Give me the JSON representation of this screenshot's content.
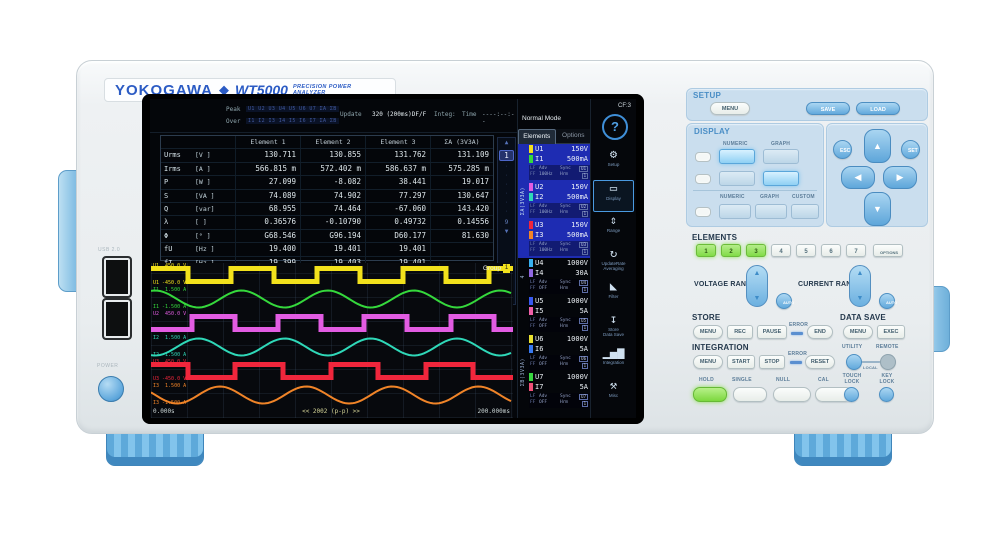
{
  "brand": {
    "maker": "YOKOGAWA",
    "diamond": "◆",
    "model": "WT5000",
    "tagline": "PRECISION POWER ANALYZER"
  },
  "ports": {
    "usb": "USB 2.0",
    "power": "POWER"
  },
  "screen": {
    "status": {
      "peak": "Peak",
      "peak_vals": "U1 U2 U3 U4 U5 U6 U7 ΣA ΣB",
      "over": "Over",
      "over_vals": "I1 I2 I3 I4 I5 I6 I7 ΣA ΣB",
      "update": "Update",
      "update_val": "320 (200ms)DF/F",
      "integ": "Integ:",
      "time": "Time",
      "time_val": "----:--:--",
      "mode": "Normal Mode",
      "cf": "CF:3",
      "help": "?"
    },
    "tabs": {
      "elements": "Elements",
      "options": "Options"
    },
    "table": {
      "headers": [
        "Element 1",
        "Element 2",
        "Element 3",
        "ΣA (3V3A)"
      ],
      "rows": [
        {
          "name": "Urms",
          "unit": "[V  ]",
          "values": [
            "130.711",
            "130.855",
            "131.762",
            "131.109"
          ]
        },
        {
          "name": "Irms",
          "unit": "[A  ]",
          "values": [
            "566.815 m",
            "572.402 m",
            "586.637 m",
            "575.285 m"
          ]
        },
        {
          "name": "P",
          "unit": "[W  ]",
          "values": [
            "27.099",
            "-8.082",
            "38.441",
            "19.017"
          ]
        },
        {
          "name": "S",
          "unit": "[VA ]",
          "values": [
            "74.089",
            "74.902",
            "77.297",
            "130.647"
          ]
        },
        {
          "name": "Q",
          "unit": "[var]",
          "values": [
            "68.955",
            "74.464",
            "-67.060",
            "143.420"
          ]
        },
        {
          "name": "λ",
          "unit": "[   ]",
          "values": [
            "0.36576",
            "-0.10790",
            "0.49732",
            "0.14556"
          ]
        },
        {
          "name": "Φ",
          "unit": "[°  ]",
          "values": [
            "G68.546",
            "G96.194",
            "D60.177",
            "81.630"
          ]
        },
        {
          "name": "fU",
          "unit": "[Hz ]",
          "values": [
            "19.400",
            "19.401",
            "19.401",
            ""
          ]
        },
        {
          "name": "fI",
          "unit": "[Hz ]",
          "values": [
            "19.399",
            "19.403",
            "19.401",
            ""
          ]
        }
      ],
      "page_first": "1",
      "page_last": "9",
      "up_arrow": "▲",
      "down_arrow": "▼"
    },
    "waveform": {
      "group_label": "Group",
      "group_num": "1",
      "time_start": "0.000s",
      "time_center": "<< 2002 (p-p) >>",
      "time_end": "200.000ms",
      "traces": [
        {
          "ch": "U1",
          "top_label": "U1  450.0 V",
          "bottom_label": "U1 -450.0 V",
          "color": "#f2e11c",
          "type": "square",
          "cycles": 4.2,
          "phase": 0.08
        },
        {
          "ch": "I1",
          "top_label": "I1  1.500 A",
          "bottom_label": "I1 -1.500 A",
          "color": "#35d83c",
          "type": "sine",
          "cycles": 4.2,
          "phase": 0.2
        },
        {
          "ch": "U2",
          "top_label": "U2  450.0 V",
          "bottom_label": "U2 -450.0 V",
          "color": "#e25ce2",
          "type": "square",
          "cycles": 4.2,
          "phase": 0.53
        },
        {
          "ch": "I2",
          "top_label": "I2  1.500 A",
          "bottom_label": "I2 -1.500 A",
          "color": "#2fd8b8",
          "type": "sine",
          "cycles": 4.2,
          "phase": 0.7
        },
        {
          "ch": "U3",
          "top_label": "U3  450.0 V",
          "bottom_label": "U3 -450.0 V",
          "color": "#f0263c",
          "type": "square",
          "cycles": 3.8,
          "phase": 0.12
        },
        {
          "ch": "I3",
          "top_label": "I3  1.500 A",
          "bottom_label": "I3 -1.500 A",
          "color": "#f08428",
          "type": "sine",
          "cycles": 4.2,
          "phase": 0.45
        }
      ]
    },
    "set_labels": {
      "lf": "LF",
      "ff": "FF",
      "adv": "Adv",
      "sync": "Sync",
      "hrm": "Hrm",
      "hrm_val": "1"
    },
    "groups": [
      {
        "label": "ΣA(3V3A)",
        "selected": true,
        "elements": [
          {
            "u": "U1",
            "ur": "150V",
            "uc": "#f2e11c",
            "i": "I1",
            "ir": "500mA",
            "ic": "#35d83c",
            "freq": "100Hz",
            "sync": "U1"
          },
          {
            "u": "U2",
            "ur": "150V",
            "uc": "#e25ce2",
            "i": "I2",
            "ir": "500mA",
            "ic": "#2fd8b8",
            "freq": "100Hz",
            "sync": "U2"
          },
          {
            "u": "U3",
            "ur": "150V",
            "uc": "#f0263c",
            "i": "I3",
            "ir": "500mA",
            "ic": "#f08428",
            "freq": "100Hz",
            "sync": "U3"
          }
        ]
      },
      {
        "label": "4",
        "selected": false,
        "elements": [
          {
            "u": "U4",
            "ur": "1000V",
            "uc": "#38b0f0",
            "i": "I4",
            "ir": "30A",
            "ic": "#9068e0",
            "freq": "OFF",
            "sync": "U4"
          }
        ]
      },
      {
        "label": "",
        "selected": false,
        "elements": [
          {
            "u": "U5",
            "ur": "1000V",
            "uc": "#3858f0",
            "i": "I5",
            "ir": "5A",
            "ic": "#f060a8",
            "freq": "OFF",
            "sync": "U5"
          }
        ]
      },
      {
        "label": "ΣB(3V3A)",
        "selected": false,
        "elements": [
          {
            "u": "U6",
            "ur": "1000V",
            "uc": "#e8e030",
            "i": "I6",
            "ir": "5A",
            "ic": "#3878f0",
            "freq": "OFF",
            "sync": "U6"
          },
          {
            "u": "U7",
            "ur": "1000V",
            "uc": "#38d840",
            "i": "I7",
            "ir": "5A",
            "ic": "#f05078",
            "freq": "OFF",
            "sync": "U7"
          }
        ]
      }
    ],
    "menu": [
      {
        "name": "setup",
        "glyph": "⚙",
        "label": "Setup",
        "label2": "",
        "selected": false
      },
      {
        "name": "display",
        "glyph": "▭",
        "label": "Display",
        "label2": "",
        "selected": true
      },
      {
        "name": "range",
        "glyph": "⇕",
        "label": "Range",
        "label2": "",
        "selected": false
      },
      {
        "name": "update-rate",
        "glyph": "↻",
        "label": "UpdateRate",
        "label2": "Averaging",
        "selected": false
      },
      {
        "name": "filter",
        "glyph": "◣",
        "label": "Filter",
        "label2": "",
        "selected": false
      },
      {
        "name": "store",
        "glyph": "↧",
        "label": "Store",
        "label2": "Data Save",
        "selected": false
      },
      {
        "name": "integration",
        "glyph": "▁▄▆",
        "label": "Integration",
        "label2": "",
        "selected": false
      },
      {
        "name": "misc",
        "glyph": "⚒",
        "label": "Misc",
        "label2": "",
        "selected": false
      }
    ]
  },
  "panel": {
    "setup": {
      "label": "SETUP",
      "menu": "MENU",
      "save": "SAVE",
      "load": "LOAD"
    },
    "display": {
      "label": "DISPLAY",
      "top_labels": [
        "NUMERIC",
        "GRAPH"
      ],
      "bottom_labels": [
        "NUMERIC",
        "GRAPH",
        "CUSTOM"
      ]
    },
    "nav": {
      "esc": "ESC",
      "set": "SET",
      "up": "▲",
      "down": "▼",
      "left": "◀",
      "right": "▶"
    },
    "elements": {
      "label": "ELEMENTS",
      "buttons": [
        "1",
        "2",
        "3",
        "4",
        "5",
        "6",
        "7",
        "OPTIONS"
      ],
      "lit_count": 3
    },
    "vrange": {
      "label": "VOLTAGE RANGE",
      "auto": "AUTO",
      "up": "▲",
      "down": "▼"
    },
    "crange": {
      "label": "CURRENT RANGE",
      "auto": "AUTO",
      "up": "▲",
      "down": "▼"
    },
    "store": {
      "label": "STORE",
      "menu": "MENU",
      "rec": "REC",
      "pause": "PAUSE",
      "error": "ERROR",
      "end": "END"
    },
    "datasave": {
      "label": "DATA SAVE",
      "menu": "MENU",
      "exec": "EXEC"
    },
    "integration": {
      "label": "INTEGRATION",
      "menu": "MENU",
      "start": "START",
      "stop": "STOP",
      "error": "ERROR",
      "reset": "RESET"
    },
    "utility": {
      "label": "UTILITY",
      "remote": "REMOTE",
      "local": "LOCAL"
    },
    "bottom": {
      "hold": "HOLD",
      "single": "SINGLE",
      "nul": "NULL",
      "cal": "CAL"
    },
    "locks": {
      "touch1": "TOUCH",
      "touch2": "LOCK",
      "key1": "KEY",
      "key2": "LOCK"
    }
  }
}
